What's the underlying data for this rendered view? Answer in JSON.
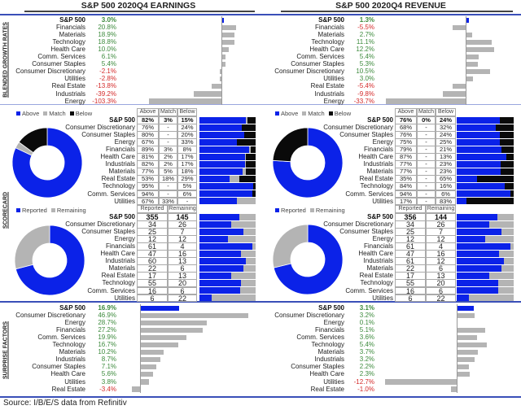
{
  "source": "Source: I/B/E/S data from Refinitiv",
  "section_labels": {
    "growth": "BLENDED GROWTH RATES",
    "scorecard": "SCORECARD",
    "surprise": "SURPRISE FACTORS"
  },
  "colors": {
    "blue": "#0b22e8",
    "grey": "#b4b4b4",
    "black": "#0a0a0a",
    "positive": "#3c8a3c",
    "negative": "#d42a2a"
  },
  "chart_data": [
    {
      "title": "S&P 500 2020Q4 EARNINGS",
      "type": "bar",
      "growth": [
        {
          "sector": "S&P 500",
          "value": 3.0
        },
        {
          "sector": "Financials",
          "value": 20.8
        },
        {
          "sector": "Materials",
          "value": 18.9
        },
        {
          "sector": "Technology",
          "value": 18.8
        },
        {
          "sector": "Health Care",
          "value": 10.0
        },
        {
          "sector": "Comm. Services",
          "value": 6.1
        },
        {
          "sector": "Consumer Staples",
          "value": 5.4
        },
        {
          "sector": "Consumer Discretionary",
          "value": -2.1
        },
        {
          "sector": "Utilities",
          "value": -2.8
        },
        {
          "sector": "Real Estate",
          "value": -13.8
        },
        {
          "sector": "Industrials",
          "value": -39.2
        },
        {
          "sector": "Energy",
          "value": -103.3
        }
      ],
      "scorecard": {
        "legend": [
          "Above",
          "Match",
          "Below"
        ],
        "headers": [
          "Above",
          "Match",
          "Below"
        ],
        "rows": [
          {
            "sector": "S&P 500",
            "cells": [
              "82%",
              "3%",
              "15%"
            ]
          },
          {
            "sector": "Consumer Discretionary",
            "cells": [
              "76%",
              "-",
              "24%"
            ]
          },
          {
            "sector": "Consumer Staples",
            "cells": [
              "80%",
              "-",
              "20%"
            ]
          },
          {
            "sector": "Energy",
            "cells": [
              "67%",
              "-",
              "33%"
            ]
          },
          {
            "sector": "Financials",
            "cells": [
              "89%",
              "3%",
              "8%"
            ]
          },
          {
            "sector": "Health Care",
            "cells": [
              "81%",
              "2%",
              "17%"
            ]
          },
          {
            "sector": "Industrials",
            "cells": [
              "82%",
              "2%",
              "17%"
            ]
          },
          {
            "sector": "Materials",
            "cells": [
              "77%",
              "5%",
              "18%"
            ]
          },
          {
            "sector": "Real Estate",
            "cells": [
              "53%",
              "18%",
              "29%"
            ]
          },
          {
            "sector": "Technology",
            "cells": [
              "95%",
              "-",
              "5%"
            ]
          },
          {
            "sector": "Comm. Services",
            "cells": [
              "94%",
              "-",
              "6%"
            ]
          },
          {
            "sector": "Utilities",
            "cells": [
              "67%",
              "33%",
              "-"
            ]
          }
        ]
      },
      "reported": {
        "legend": [
          "Reported",
          "Remaining"
        ],
        "headers": [
          "Reported",
          "Remaining"
        ],
        "rows": [
          {
            "sector": "S&P 500",
            "cells": [
              "355",
              "145"
            ]
          },
          {
            "sector": "Consumer Discretionary",
            "cells": [
              "34",
              "26"
            ]
          },
          {
            "sector": "Consumer Staples",
            "cells": [
              "25",
              "7"
            ]
          },
          {
            "sector": "Energy",
            "cells": [
              "12",
              "12"
            ]
          },
          {
            "sector": "Financials",
            "cells": [
              "61",
              "4"
            ]
          },
          {
            "sector": "Health Care",
            "cells": [
              "47",
              "16"
            ]
          },
          {
            "sector": "Industrials",
            "cells": [
              "60",
              "13"
            ]
          },
          {
            "sector": "Materials",
            "cells": [
              "22",
              "6"
            ]
          },
          {
            "sector": "Real Estate",
            "cells": [
              "17",
              "13"
            ]
          },
          {
            "sector": "Technology",
            "cells": [
              "55",
              "20"
            ]
          },
          {
            "sector": "Comm. Services",
            "cells": [
              "16",
              "6"
            ]
          },
          {
            "sector": "Utilities",
            "cells": [
              "6",
              "22"
            ]
          }
        ]
      },
      "surprise": [
        {
          "sector": "S&P 500",
          "value": 16.9
        },
        {
          "sector": "Consumer Discretionary",
          "value": 46.9
        },
        {
          "sector": "Energy",
          "value": 28.7
        },
        {
          "sector": "Financials",
          "value": 27.2
        },
        {
          "sector": "Comm. Services",
          "value": 19.9
        },
        {
          "sector": "Technology",
          "value": 16.7
        },
        {
          "sector": "Materials",
          "value": 10.2
        },
        {
          "sector": "Industrials",
          "value": 8.7
        },
        {
          "sector": "Consumer Staples",
          "value": 7.1
        },
        {
          "sector": "Health Care",
          "value": 5.6
        },
        {
          "sector": "Utilities",
          "value": 3.8
        },
        {
          "sector": "Real Estate",
          "value": -3.4
        }
      ]
    },
    {
      "title": "S&P 500 2020Q4 REVENUE",
      "type": "bar",
      "growth": [
        {
          "sector": "S&P 500",
          "value": 1.3
        },
        {
          "sector": "Financials",
          "value": -5.5
        },
        {
          "sector": "Materials",
          "value": 2.7
        },
        {
          "sector": "Technology",
          "value": 11.1
        },
        {
          "sector": "Health Care",
          "value": 12.2
        },
        {
          "sector": "Comm. Services",
          "value": 5.4
        },
        {
          "sector": "Consumer Staples",
          "value": 5.3
        },
        {
          "sector": "Consumer Discretionary",
          "value": 10.5
        },
        {
          "sector": "Utilities",
          "value": 3.0
        },
        {
          "sector": "Real Estate",
          "value": -5.4
        },
        {
          "sector": "Industrials",
          "value": -9.8
        },
        {
          "sector": "Energy",
          "value": -33.7
        }
      ],
      "scorecard": {
        "legend": [
          "Above",
          "Match",
          "Below"
        ],
        "headers": [
          "Above",
          "Match",
          "Below"
        ],
        "rows": [
          {
            "sector": "S&P 500",
            "cells": [
              "76%",
              "0%",
              "24%"
            ]
          },
          {
            "sector": "Consumer Discretionary",
            "cells": [
              "68%",
              "-",
              "32%"
            ]
          },
          {
            "sector": "Consumer Staples",
            "cells": [
              "76%",
              "-",
              "24%"
            ]
          },
          {
            "sector": "Energy",
            "cells": [
              "75%",
              "-",
              "25%"
            ]
          },
          {
            "sector": "Financials",
            "cells": [
              "79%",
              "-",
              "21%"
            ]
          },
          {
            "sector": "Health Care",
            "cells": [
              "87%",
              "-",
              "13%"
            ]
          },
          {
            "sector": "Industrials",
            "cells": [
              "77%",
              "-",
              "23%"
            ]
          },
          {
            "sector": "Materials",
            "cells": [
              "77%",
              "-",
              "23%"
            ]
          },
          {
            "sector": "Real Estate",
            "cells": [
              "35%",
              "-",
              "65%"
            ]
          },
          {
            "sector": "Technology",
            "cells": [
              "84%",
              "-",
              "16%"
            ]
          },
          {
            "sector": "Comm. Services",
            "cells": [
              "94%",
              "-",
              "6%"
            ]
          },
          {
            "sector": "Utilities",
            "cells": [
              "17%",
              "-",
              "83%"
            ]
          }
        ]
      },
      "reported": {
        "legend": [
          "Reported",
          "Remaining"
        ],
        "headers": [
          "Reported",
          "Remaining"
        ],
        "rows": [
          {
            "sector": "S&P 500",
            "cells": [
              "356",
              "144"
            ]
          },
          {
            "sector": "Consumer Discretionary",
            "cells": [
              "34",
              "26"
            ]
          },
          {
            "sector": "Consumer Staples",
            "cells": [
              "25",
              "7"
            ]
          },
          {
            "sector": "Energy",
            "cells": [
              "12",
              "12"
            ]
          },
          {
            "sector": "Financials",
            "cells": [
              "61",
              "4"
            ]
          },
          {
            "sector": "Health Care",
            "cells": [
              "47",
              "16"
            ]
          },
          {
            "sector": "Industrials",
            "cells": [
              "61",
              "12"
            ]
          },
          {
            "sector": "Materials",
            "cells": [
              "22",
              "6"
            ]
          },
          {
            "sector": "Real Estate",
            "cells": [
              "17",
              "13"
            ]
          },
          {
            "sector": "Technology",
            "cells": [
              "55",
              "20"
            ]
          },
          {
            "sector": "Comm. Services",
            "cells": [
              "16",
              "6"
            ]
          },
          {
            "sector": "Utilities",
            "cells": [
              "6",
              "22"
            ]
          }
        ]
      },
      "surprise": [
        {
          "sector": "S&P 500",
          "value": 3.1
        },
        {
          "sector": "Consumer Discretionary",
          "value": 3.2
        },
        {
          "sector": "Energy",
          "value": 0.1
        },
        {
          "sector": "Financials",
          "value": 5.1
        },
        {
          "sector": "Comm. Services",
          "value": 3.6
        },
        {
          "sector": "Technology",
          "value": 5.4
        },
        {
          "sector": "Materials",
          "value": 3.7
        },
        {
          "sector": "Industrials",
          "value": 3.2
        },
        {
          "sector": "Consumer Staples",
          "value": 2.2
        },
        {
          "sector": "Health Care",
          "value": 2.3
        },
        {
          "sector": "Utilities",
          "value": -12.7
        },
        {
          "sector": "Real Estate",
          "value": -1.0
        }
      ]
    }
  ]
}
